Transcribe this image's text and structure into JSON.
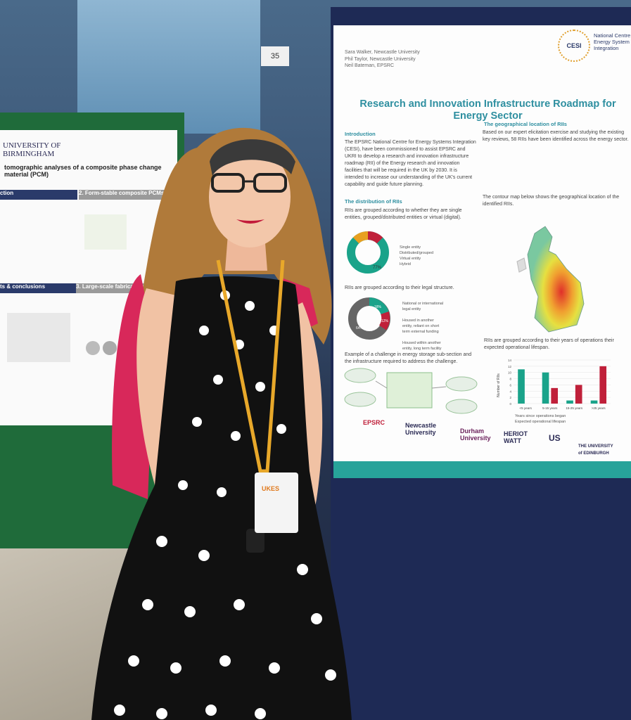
{
  "booth": {
    "number": "35"
  },
  "left_poster": {
    "university": "UNIVERSITY OF\nBIRMINGHAM",
    "title": "tomographic analyses of a composite phase change material (PCM)",
    "sections": [
      "ction",
      "2. Form-stable composite PCMs",
      "ts & conclusions",
      "3. Large-scale fabrication method"
    ]
  },
  "poster": {
    "authors": "Sara Walker, Newcastle University\nPhil Taylor, Newcastle University\nNeil Bateman, EPSRC",
    "title": "Research and Innovation Infrastructure Roadmap for\nEnergy Sector",
    "org": "National Centre\nEnergy System\nIntegration",
    "logo": "CESI",
    "intro_heading": "Introduction",
    "intro_text": "The EPSRC National Centre for Energy Systems Integration (CESI), have been commissioned to assist EPSRC and UKRI to develop a research and innovation infrastructure roadmap (RII) of the Energy research and innovation facilities that will be required in the UK by 2030. It is intended to increase our understanding of the UK's current capability and guide future planning.",
    "dist_heading": "The distribution of RIIs",
    "dist_text": "RIIs are grouped according to whether they are single entities, grouped/distributed entities or virtual (digital).",
    "pie1_legend": "Single entity\nDistributed/grouped\nVirtual entity\nHybrid",
    "pie1_label": "77%",
    "legal_text": "RIIs are grouped according to their legal structure.",
    "pie2_legend": "National or international\nlegal entity\n\nHoused in another\nentity, reliant on short\nterm external funding\n\nHoused within another\nentity, long term facility",
    "pie2_labels": [
      "18%",
      "12%",
      "64%"
    ],
    "challenge_text": "Example of a challenge in energy storage sub-section and the infrastructure required to address the challenge.",
    "geo_heading": "The geographical location of RIIs",
    "geo_text": "Based on our expert elicitation exercise and studying the existing key reviews, 58 RIIs have been identified across the energy sector.",
    "contour_text": "The contour map below shows the geographical location of the identified RIIs.",
    "lifespan_text": "RIIs are grouped according to their years of operations their expected operational lifespan.",
    "chart_legend": "Years since operations began\nExpected operational lifespan",
    "sponsors": [
      "EPSRC",
      "Newcastle\nUniversity",
      "Durham\nUniversity",
      "HERIOT\nWATT",
      "US",
      "THE UNIVERSITY\nof EDINBURGH"
    ]
  },
  "badge": {
    "text": "UKES"
  },
  "chart_data": {
    "type": "bar",
    "categories": [
      "<5 years",
      "5-15 years",
      "15-25 years",
      ">25 years"
    ],
    "series": [
      {
        "name": "Years since operations began",
        "values": [
          11,
          10,
          1,
          1
        ],
        "color": "#1aa38a"
      },
      {
        "name": "Expected operational lifespan",
        "values": [
          0,
          5,
          6,
          12
        ],
        "color": "#c0203a"
      }
    ],
    "ylabel": "Number of RIIs",
    "ylim": [
      0,
      14
    ],
    "yticks": [
      0,
      2,
      4,
      6,
      8,
      10,
      12,
      14
    ]
  }
}
